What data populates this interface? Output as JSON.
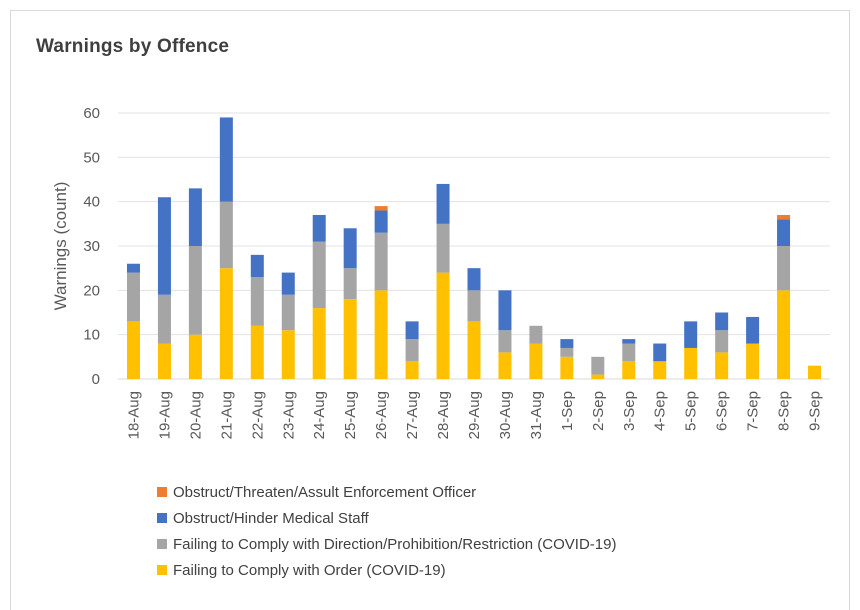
{
  "chart_data": {
    "type": "bar",
    "stacked": true,
    "title": "Warnings by Offence",
    "xlabel": "",
    "ylabel": "Warnings (count)",
    "ylim": [
      0,
      60
    ],
    "yticks": [
      0,
      10,
      20,
      30,
      40,
      50,
      60
    ],
    "grid": true,
    "legend_position": "bottom",
    "categories": [
      "18-Aug",
      "19-Aug",
      "20-Aug",
      "21-Aug",
      "22-Aug",
      "23-Aug",
      "24-Aug",
      "25-Aug",
      "26-Aug",
      "27-Aug",
      "28-Aug",
      "29-Aug",
      "30-Aug",
      "31-Aug",
      "1-Sep",
      "2-Sep",
      "3-Sep",
      "4-Sep",
      "5-Sep",
      "6-Sep",
      "7-Sep",
      "8-Sep",
      "9-Sep"
    ],
    "series": [
      {
        "name": "Failing to Comply with Order (COVID-19)",
        "color": "#ffc000",
        "values": [
          13,
          8,
          10,
          25,
          12,
          11,
          16,
          18,
          20,
          4,
          24,
          13,
          6,
          8,
          5,
          1,
          4,
          4,
          7,
          6,
          8,
          20,
          3
        ]
      },
      {
        "name": "Failing to Comply with Direction/Prohibition/Restriction (COVID-19)",
        "color": "#a5a5a5",
        "values": [
          11,
          11,
          20,
          15,
          11,
          8,
          15,
          7,
          13,
          5,
          11,
          7,
          5,
          4,
          2,
          4,
          4,
          0,
          0,
          5,
          0,
          10,
          0
        ]
      },
      {
        "name": "Obstruct/Hinder Medical Staff",
        "color": "#4472c4",
        "values": [
          2,
          22,
          13,
          19,
          5,
          5,
          6,
          9,
          5,
          4,
          9,
          5,
          9,
          0,
          2,
          0,
          1,
          4,
          6,
          4,
          6,
          6,
          0
        ]
      },
      {
        "name": "Obstruct/Threaten/Assult Enforcement Officer",
        "color": "#ed7d31",
        "values": [
          0,
          0,
          0,
          0,
          0,
          0,
          0,
          0,
          1,
          0,
          0,
          0,
          0,
          0,
          0,
          0,
          0,
          0,
          0,
          0,
          0,
          1,
          0
        ]
      }
    ],
    "legend_order": [
      3,
      2,
      1,
      0
    ]
  }
}
